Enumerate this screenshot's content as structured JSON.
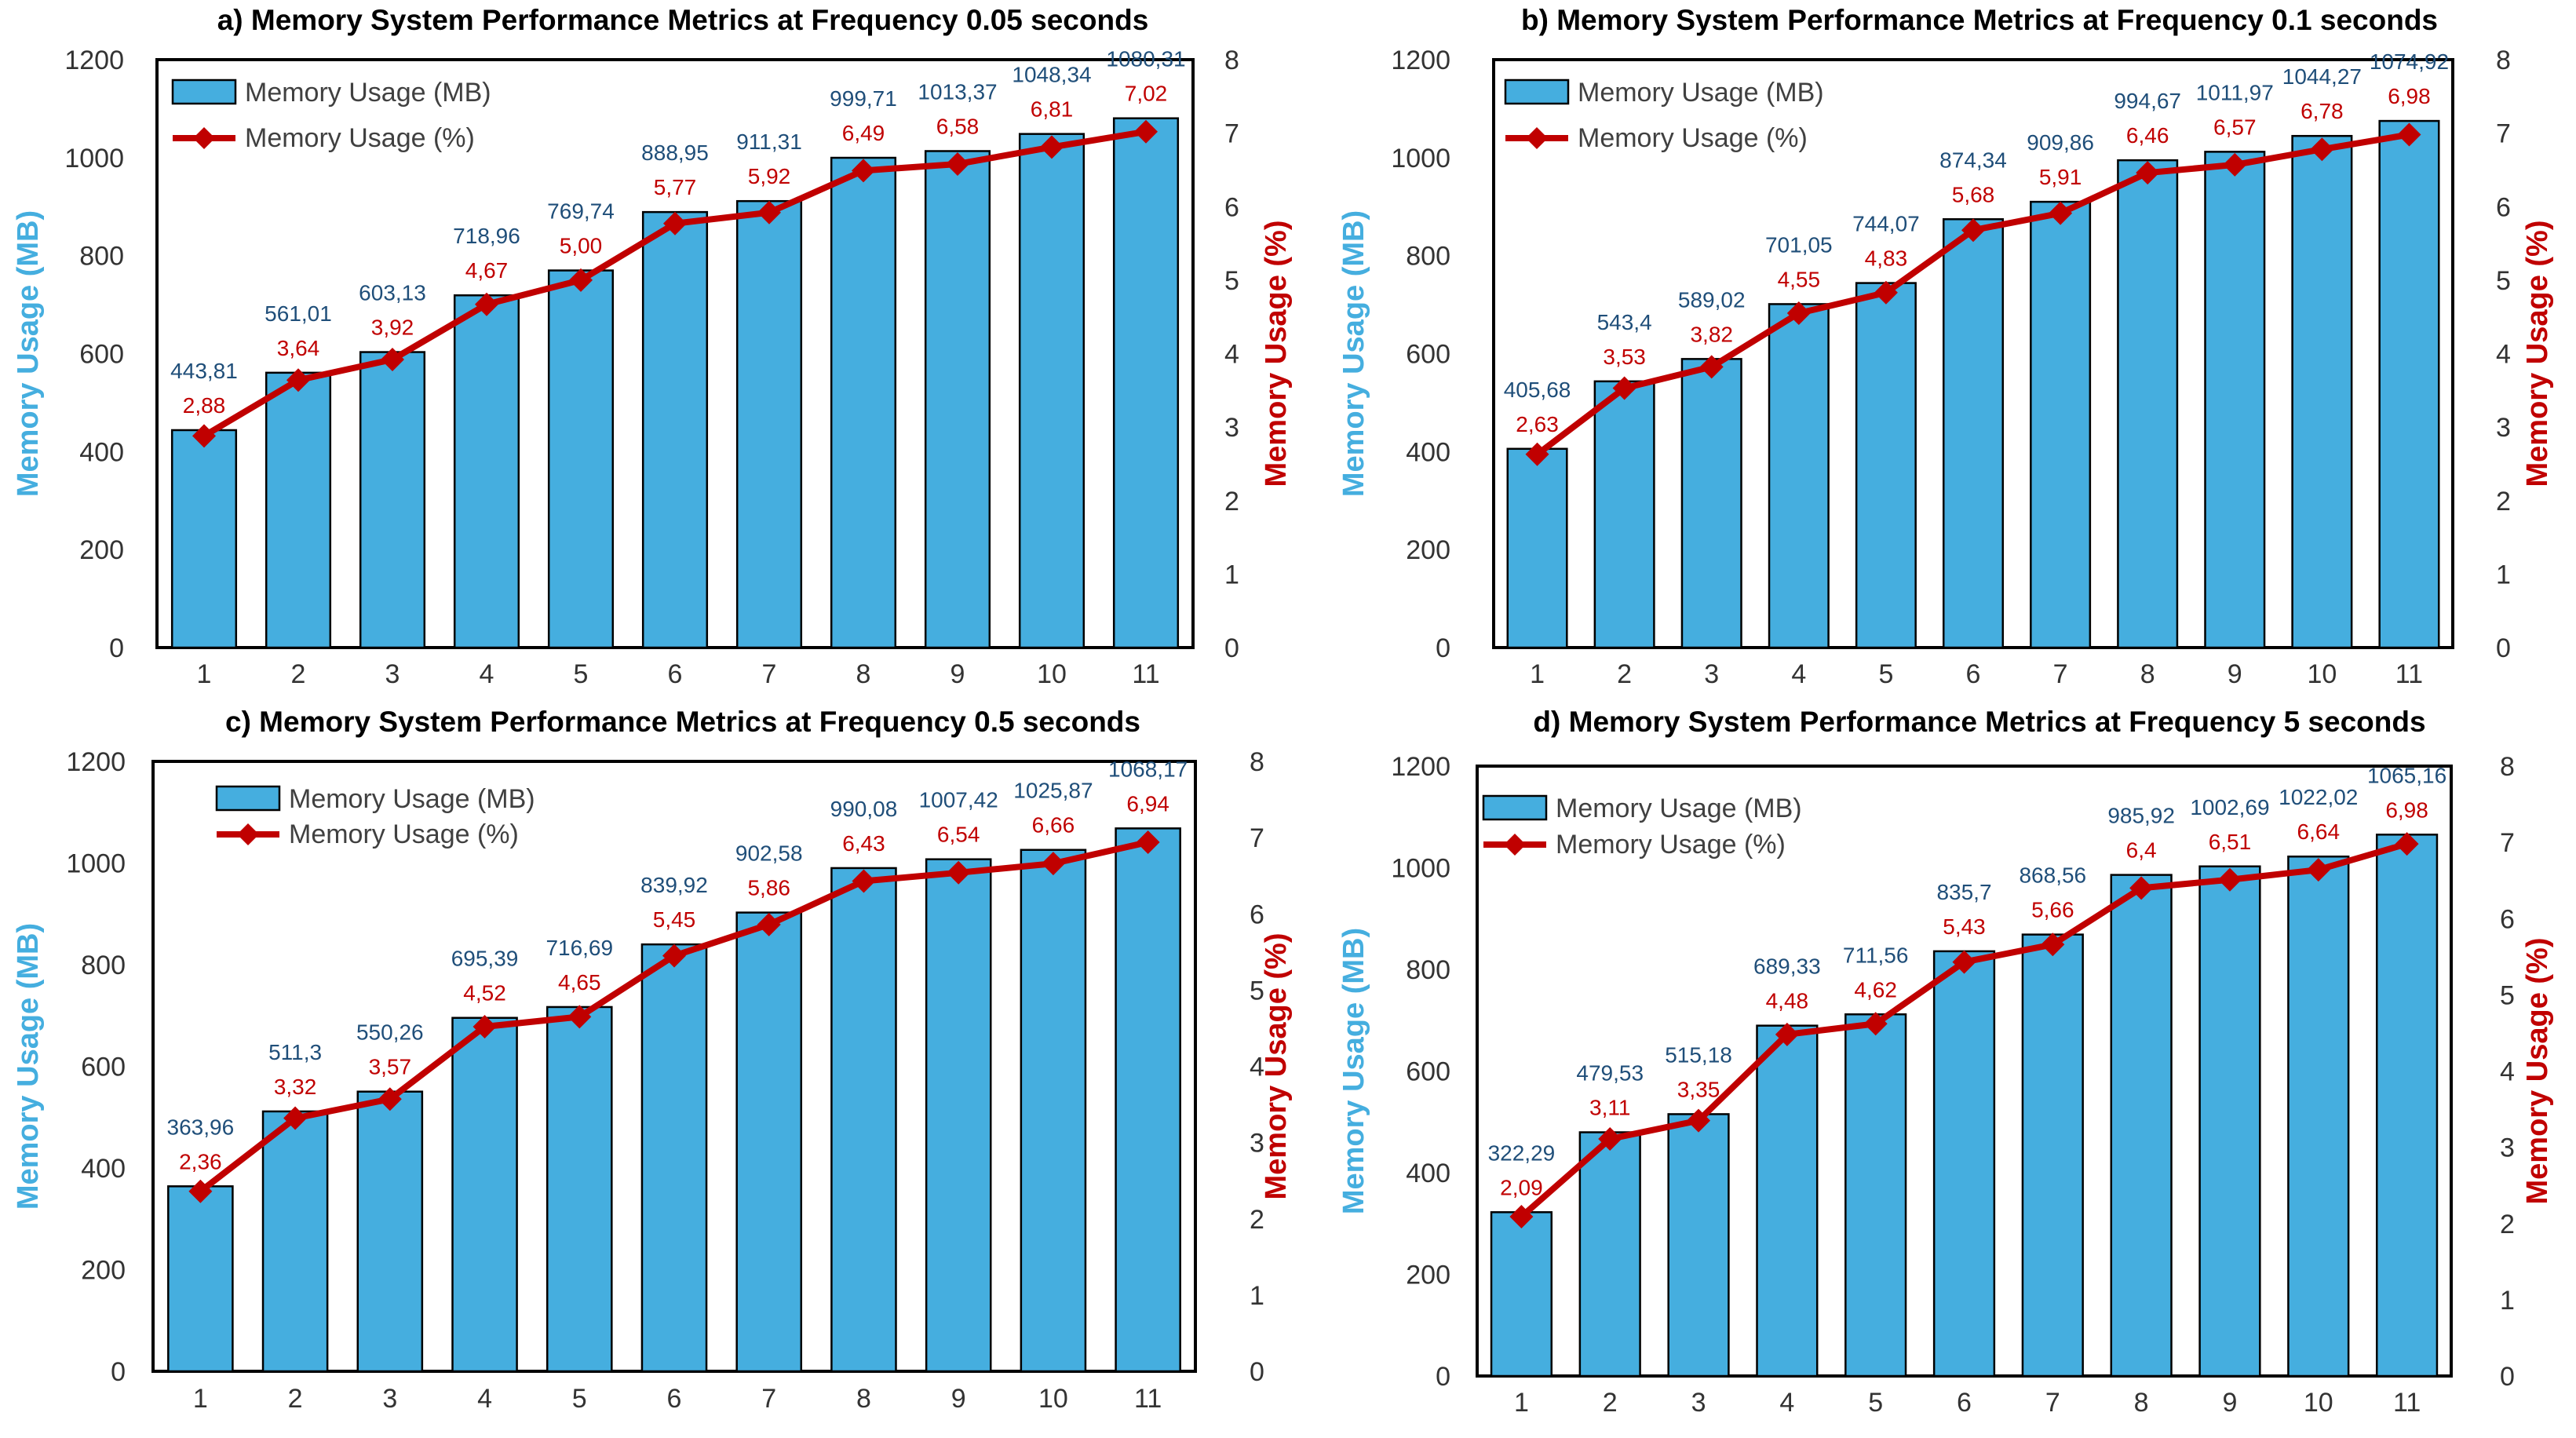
{
  "colors": {
    "bar": "#45AEDF",
    "bar_stroke": "#000000",
    "line": "#C00000",
    "bar_label": "#1F4E79",
    "line_label": "#C00000",
    "left_axis_label": "#45AEDF",
    "right_axis_label": "#C00000"
  },
  "chart_data": [
    {
      "type": "bar+line",
      "title": "a) Memory System Performance Metrics at Frequency 0.05 seconds",
      "categories": [
        "1",
        "2",
        "3",
        "4",
        "5",
        "6",
        "7",
        "8",
        "9",
        "10",
        "11"
      ],
      "ylabel_left": "Memory Usage (MB)",
      "ylabel_right": "Memory Usage (%)",
      "ylim_left": [
        0,
        1200
      ],
      "yticks_left": [
        "0",
        "200",
        "400",
        "600",
        "800",
        "1000",
        "1200"
      ],
      "ylim_right": [
        0,
        8
      ],
      "yticks_right": [
        "0",
        "1",
        "2",
        "3",
        "4",
        "5",
        "6",
        "7",
        "8"
      ],
      "legend": [
        "Memory Usage (MB)",
        "Memory Usage (%)"
      ],
      "series": [
        {
          "name": "Memory Usage (MB)",
          "kind": "bar",
          "axis": "left",
          "values": [
            443.81,
            561.01,
            603.13,
            718.96,
            769.74,
            888.95,
            911.31,
            999.71,
            1013.37,
            1048.34,
            1080.31
          ],
          "labels": [
            "443,81",
            "561,01",
            "603,13",
            "718,96",
            "769,74",
            "888,95",
            "911,31",
            "999,71",
            "1013,37",
            "1048,34",
            "1080,31"
          ]
        },
        {
          "name": "Memory Usage (%)",
          "kind": "line",
          "axis": "right",
          "values": [
            2.88,
            3.64,
            3.92,
            4.67,
            5.0,
            5.77,
            5.92,
            6.49,
            6.58,
            6.81,
            7.02
          ],
          "labels": [
            "2,88",
            "3,64",
            "3,92",
            "4,67",
            "5,00",
            "5,77",
            "5,92",
            "6,49",
            "6,58",
            "6,81",
            "7,02"
          ]
        }
      ]
    },
    {
      "type": "bar+line",
      "title": "b) Memory System Performance Metrics at Frequency 0.1 seconds",
      "categories": [
        "1",
        "2",
        "3",
        "4",
        "5",
        "6",
        "7",
        "8",
        "9",
        "10",
        "11"
      ],
      "ylabel_left": "Memory Usage (MB)",
      "ylabel_right": "Memory Usage (%)",
      "ylim_left": [
        0,
        1200
      ],
      "yticks_left": [
        "0",
        "200",
        "400",
        "600",
        "800",
        "1000",
        "1200"
      ],
      "ylim_right": [
        0,
        8
      ],
      "yticks_right": [
        "0",
        "1",
        "2",
        "3",
        "4",
        "5",
        "6",
        "7",
        "8"
      ],
      "legend": [
        "Memory Usage (MB)",
        "Memory Usage (%)"
      ],
      "series": [
        {
          "name": "Memory Usage (MB)",
          "kind": "bar",
          "axis": "left",
          "values": [
            405.68,
            543.4,
            589.02,
            701.05,
            744.07,
            874.34,
            909.86,
            994.67,
            1011.97,
            1044.27,
            1074.92
          ],
          "labels": [
            "405,68",
            "543,4",
            "589,02",
            "701,05",
            "744,07",
            "874,34",
            "909,86",
            "994,67",
            "1011,97",
            "1044,27",
            "1074,92"
          ]
        },
        {
          "name": "Memory Usage (%)",
          "kind": "line",
          "axis": "right",
          "values": [
            2.63,
            3.53,
            3.82,
            4.55,
            4.83,
            5.68,
            5.91,
            6.46,
            6.57,
            6.78,
            6.98
          ],
          "labels": [
            "2,63",
            "3,53",
            "3,82",
            "4,55",
            "4,83",
            "5,68",
            "5,91",
            "6,46",
            "6,57",
            "6,78",
            "6,98"
          ]
        }
      ]
    },
    {
      "type": "bar+line",
      "title": "c) Memory System Performance Metrics at Frequency 0.5 seconds",
      "categories": [
        "1",
        "2",
        "3",
        "4",
        "5",
        "6",
        "7",
        "8",
        "9",
        "10",
        "11"
      ],
      "ylabel_left": "Memory Usage (MB)",
      "ylabel_right": "Memory Usage (%)",
      "ylim_left": [
        0,
        1200
      ],
      "yticks_left": [
        "0",
        "200",
        "400",
        "600",
        "800",
        "1000",
        "1200"
      ],
      "ylim_right": [
        0,
        8
      ],
      "yticks_right": [
        "0",
        "1",
        "2",
        "3",
        "4",
        "5",
        "6",
        "7",
        "8"
      ],
      "legend": [
        "Memory Usage (MB)",
        "Memory Usage (%)"
      ],
      "series": [
        {
          "name": "Memory Usage (MB)",
          "kind": "bar",
          "axis": "left",
          "values": [
            363.96,
            511.3,
            550.26,
            695.39,
            716.69,
            839.92,
            902.58,
            990.08,
            1007.42,
            1025.87,
            1068.17
          ],
          "labels": [
            "363,96",
            "511,3",
            "550,26",
            "695,39",
            "716,69",
            "839,92",
            "902,58",
            "990,08",
            "1007,42",
            "1025,87",
            "1068,17"
          ]
        },
        {
          "name": "Memory Usage (%)",
          "kind": "line",
          "axis": "right",
          "values": [
            2.36,
            3.32,
            3.57,
            4.52,
            4.65,
            5.45,
            5.86,
            6.43,
            6.54,
            6.66,
            6.94
          ],
          "labels": [
            "2,36",
            "3,32",
            "3,57",
            "4,52",
            "4,65",
            "5,45",
            "5,86",
            "6,43",
            "6,54",
            "6,66",
            "6,94"
          ]
        }
      ]
    },
    {
      "type": "bar+line",
      "title": "d) Memory System Performance Metrics at Frequency 5 seconds",
      "categories": [
        "1",
        "2",
        "3",
        "4",
        "5",
        "6",
        "7",
        "8",
        "9",
        "10",
        "11"
      ],
      "ylabel_left": "Memory Usage (MB)",
      "ylabel_right": "Memory Usage (%)",
      "ylim_left": [
        0,
        1200
      ],
      "yticks_left": [
        "0",
        "200",
        "400",
        "600",
        "800",
        "1000",
        "1200"
      ],
      "ylim_right": [
        0,
        8
      ],
      "yticks_right": [
        "0",
        "1",
        "2",
        "3",
        "4",
        "5",
        "6",
        "7",
        "8"
      ],
      "legend": [
        "Memory Usage (MB)",
        "Memory Usage (%)"
      ],
      "series": [
        {
          "name": "Memory Usage (MB)",
          "kind": "bar",
          "axis": "left",
          "values": [
            322.29,
            479.53,
            515.18,
            689.33,
            711.56,
            835.7,
            868.56,
            985.92,
            1002.69,
            1022.02,
            1065.16
          ],
          "labels": [
            "322,29",
            "479,53",
            "515,18",
            "689,33",
            "711,56",
            "835,7",
            "868,56",
            "985,92",
            "1002,69",
            "1022,02",
            "1065,16"
          ]
        },
        {
          "name": "Memory Usage (%)",
          "kind": "line",
          "axis": "right",
          "values": [
            2.09,
            3.11,
            3.35,
            4.48,
            4.62,
            5.43,
            5.66,
            6.4,
            6.51,
            6.64,
            6.98
          ],
          "labels": [
            "2,09",
            "3,11",
            "3,35",
            "4,48",
            "4,62",
            "5,43",
            "5,66",
            "6,4",
            "6,51",
            "6,64",
            "6,98"
          ]
        }
      ]
    }
  ]
}
